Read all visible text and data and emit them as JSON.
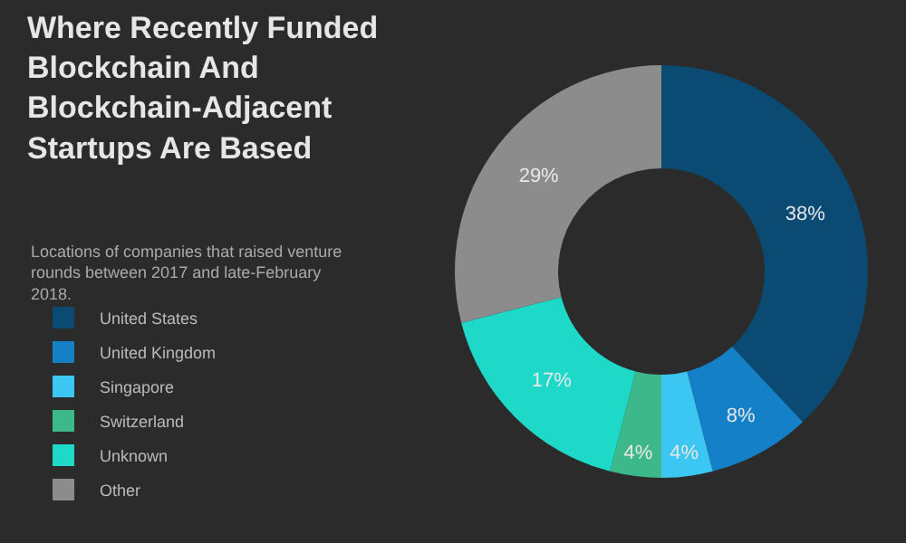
{
  "chart_data": {
    "type": "donut",
    "title": "Where Recently Funded Blockchain And Blockchain-Adjacent Startups Are Based",
    "subtitle": "Locations of companies that raised venture rounds between 2017 and late-February 2018.",
    "categories": [
      "United States",
      "United Kingdom",
      "Singapore",
      "Switzerland",
      "Unknown",
      "Other"
    ],
    "values": [
      38,
      8,
      4,
      4,
      17,
      29
    ],
    "value_labels": [
      "38%",
      "8%",
      "4%",
      "4%",
      "17%",
      "29%"
    ],
    "colors": [
      "#0b4a72",
      "#1480c8",
      "#3cc6f2",
      "#3db88a",
      "#1ed8c8",
      "#8c8c8c"
    ],
    "legend": "bottom left"
  }
}
